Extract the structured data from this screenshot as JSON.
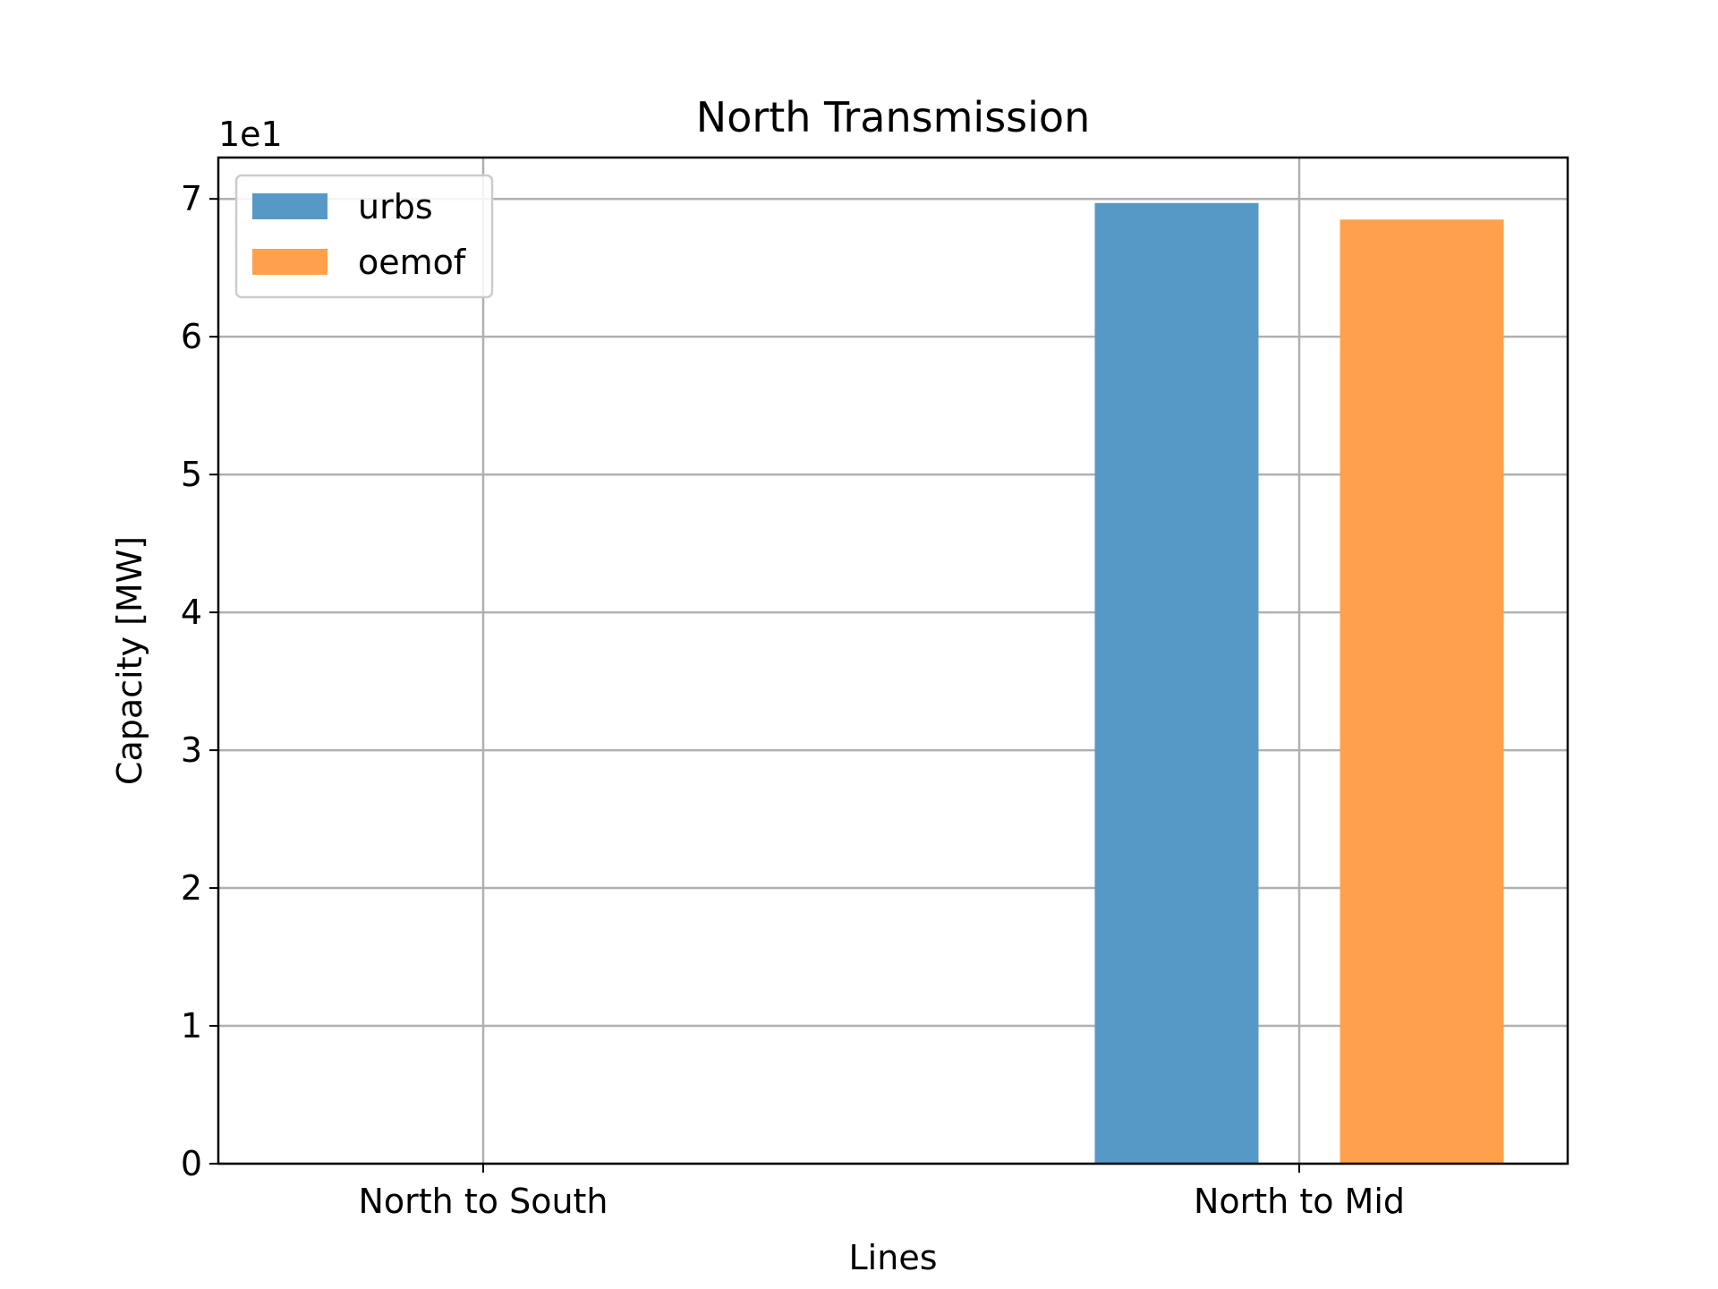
{
  "chart_data": {
    "type": "bar",
    "title": "North Transmission",
    "xlabel": "Lines",
    "ylabel": "Capacity [MW]",
    "offset_text": "1e1",
    "categories": [
      "North to South",
      "North to Mid"
    ],
    "series": [
      {
        "name": "urbs",
        "values": [
          0,
          6.97
        ],
        "color": "#5799c6"
      },
      {
        "name": "oemof",
        "values": [
          0,
          6.85
        ],
        "color": "#ffa04c"
      }
    ],
    "ylim": [
      0,
      7.3
    ],
    "yticks": [
      "0",
      "1",
      "2",
      "3",
      "4",
      "5",
      "6",
      "7"
    ],
    "grid": true,
    "legend_position": "top-left"
  }
}
